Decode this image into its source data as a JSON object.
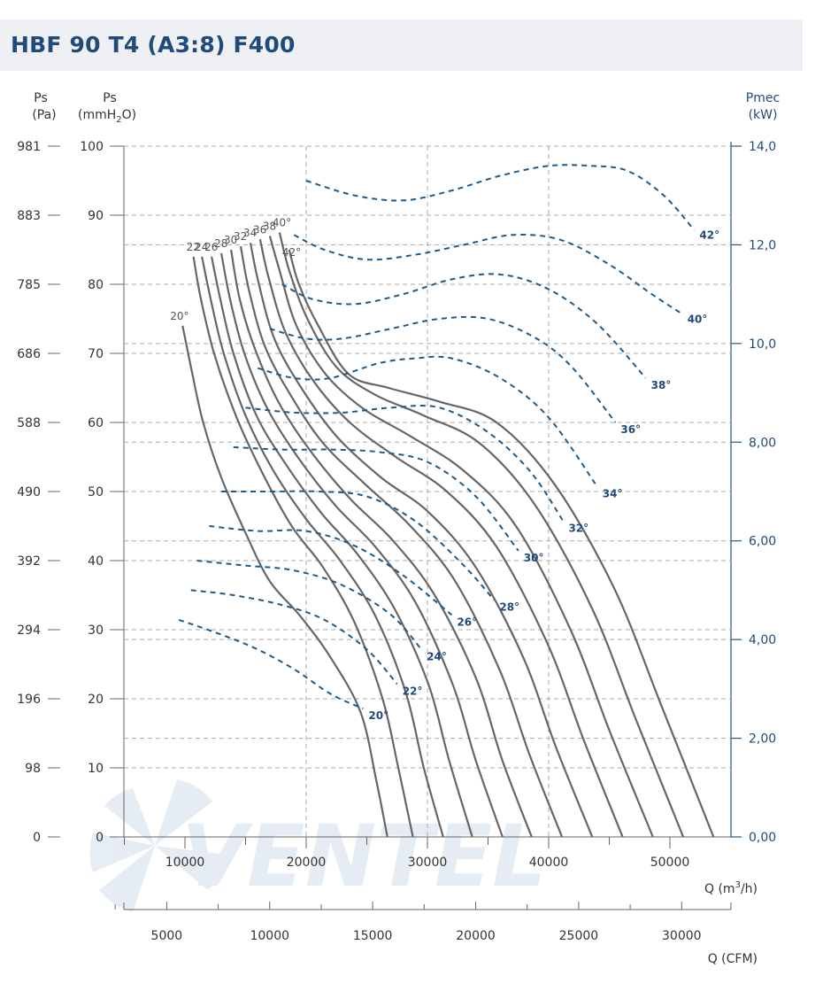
{
  "title": "HBF 90 T4 (A3:8) F400",
  "watermark": "VENTEL",
  "colors": {
    "title": "#1f4a7a",
    "curve": "#666666",
    "power": "#1f5a8a",
    "grid": "#aaaaaa"
  },
  "chart_data": {
    "type": "line",
    "title": "HBF 90 T4 (A3:8) F400",
    "grid": true,
    "axes": {
      "left_pa": {
        "label": "Ps",
        "unit": "(Pa)",
        "ticks": [
          "981",
          "883",
          "785",
          "686",
          "588",
          "490",
          "392",
          "294",
          "196",
          "98",
          "0"
        ]
      },
      "left_mmh2o": {
        "label": "Ps",
        "unit_main": "(mmH",
        "unit_sub": "2",
        "unit_end": "O)",
        "ticks": [
          "100",
          "90",
          "80",
          "70",
          "60",
          "50",
          "40",
          "30",
          "20",
          "10",
          "0"
        ],
        "ylim": [
          0,
          100
        ]
      },
      "right_kw": {
        "label": "Pmec",
        "unit": "(kW)",
        "ticks": [
          "14,0",
          "12,0",
          "10,0",
          "8,00",
          "6,00",
          "4,00",
          "2,00",
          "0,00"
        ],
        "ylim": [
          0,
          14
        ]
      },
      "x_m3h": {
        "label_main": "Q (m",
        "label_sup": "3",
        "label_end": "/h)",
        "ticks": [
          "10000",
          "20000",
          "30000",
          "40000",
          "50000"
        ],
        "xlim": [
          0,
          50000
        ]
      },
      "x_cfm": {
        "label": "Q (CFM)",
        "ticks": [
          "5000",
          "10000",
          "15000",
          "20000",
          "25000",
          "30000"
        ]
      }
    },
    "pressure_curves": [
      {
        "angle": "20°",
        "label": "20°",
        "points": [
          [
            9800,
            74
          ],
          [
            10500,
            68
          ],
          [
            11500,
            60
          ],
          [
            13000,
            52
          ],
          [
            15000,
            44
          ],
          [
            17000,
            37
          ],
          [
            19500,
            32
          ],
          [
            22000,
            26
          ],
          [
            24500,
            18
          ],
          [
            25800,
            8
          ],
          [
            26700,
            0
          ]
        ]
      },
      {
        "angle": "22°",
        "label": "22",
        "points": [
          [
            10700,
            84
          ],
          [
            11300,
            78
          ],
          [
            12400,
            70
          ],
          [
            14200,
            61
          ],
          [
            16300,
            53
          ],
          [
            18800,
            45
          ],
          [
            21400,
            39
          ],
          [
            24000,
            31
          ],
          [
            26300,
            20
          ],
          [
            27600,
            10
          ],
          [
            28800,
            0
          ]
        ]
      },
      {
        "angle": "24°",
        "label": "24",
        "points": [
          [
            11400,
            84
          ],
          [
            12100,
            78
          ],
          [
            13200,
            70
          ],
          [
            15000,
            61
          ],
          [
            17300,
            53
          ],
          [
            20000,
            46
          ],
          [
            22800,
            40
          ],
          [
            25700,
            32
          ],
          [
            28200,
            21
          ],
          [
            29700,
            10
          ],
          [
            31300,
            0
          ]
        ]
      },
      {
        "angle": "26°",
        "label": "26",
        "points": [
          [
            12200,
            84
          ],
          [
            12900,
            78
          ],
          [
            14000,
            70
          ],
          [
            15900,
            61
          ],
          [
            18300,
            54
          ],
          [
            21200,
            47
          ],
          [
            24200,
            41
          ],
          [
            27300,
            33
          ],
          [
            30100,
            22
          ],
          [
            31800,
            11
          ],
          [
            33700,
            0
          ]
        ]
      },
      {
        "angle": "28°",
        "label": "28",
        "points": [
          [
            13000,
            84.5
          ],
          [
            13700,
            78
          ],
          [
            14900,
            70
          ],
          [
            16800,
            62
          ],
          [
            19300,
            55
          ],
          [
            22400,
            48
          ],
          [
            25700,
            42
          ],
          [
            29000,
            34
          ],
          [
            32100,
            22
          ],
          [
            34000,
            11
          ],
          [
            36200,
            0
          ]
        ]
      },
      {
        "angle": "30°",
        "label": "30",
        "points": [
          [
            13800,
            85
          ],
          [
            14500,
            78
          ],
          [
            15700,
            71
          ],
          [
            17700,
            63
          ],
          [
            20300,
            56
          ],
          [
            23600,
            49
          ],
          [
            27100,
            43
          ],
          [
            30600,
            35
          ],
          [
            34000,
            23
          ],
          [
            36200,
            11
          ],
          [
            38600,
            0
          ]
        ]
      },
      {
        "angle": "32°",
        "label": "32",
        "points": [
          [
            14600,
            85.5
          ],
          [
            15300,
            79
          ],
          [
            16600,
            71
          ],
          [
            18700,
            64
          ],
          [
            21400,
            57
          ],
          [
            24900,
            51
          ],
          [
            28600,
            45
          ],
          [
            32300,
            37
          ],
          [
            36000,
            24
          ],
          [
            38400,
            12
          ],
          [
            41100,
            0
          ]
        ]
      },
      {
        "angle": "34°",
        "label": "34",
        "points": [
          [
            15400,
            86
          ],
          [
            16100,
            80
          ],
          [
            17400,
            72
          ],
          [
            19600,
            65
          ],
          [
            22500,
            58
          ],
          [
            26200,
            52
          ],
          [
            30100,
            47
          ],
          [
            34000,
            39
          ],
          [
            37900,
            26
          ],
          [
            40600,
            13
          ],
          [
            43600,
            0
          ]
        ]
      },
      {
        "angle": "36°",
        "label": "36",
        "points": [
          [
            16200,
            86.5
          ],
          [
            16900,
            81
          ],
          [
            18300,
            73
          ],
          [
            20600,
            66
          ],
          [
            23600,
            60
          ],
          [
            27400,
            55
          ],
          [
            31600,
            50
          ],
          [
            35700,
            42
          ],
          [
            39900,
            28
          ],
          [
            42900,
            14
          ],
          [
            46100,
            0
          ]
        ]
      },
      {
        "angle": "38°",
        "label": "38",
        "points": [
          [
            17000,
            87
          ],
          [
            17800,
            82
          ],
          [
            19200,
            74
          ],
          [
            21600,
            67
          ],
          [
            24700,
            62
          ],
          [
            28600,
            58
          ],
          [
            33000,
            53
          ],
          [
            37300,
            45
          ],
          [
            41800,
            30
          ],
          [
            45100,
            15
          ],
          [
            48600,
            0
          ]
        ]
      },
      {
        "angle": "40°",
        "label": "40°",
        "points": [
          [
            17800,
            87.5
          ],
          [
            18600,
            82
          ],
          [
            20100,
            75
          ],
          [
            22500,
            68
          ],
          [
            25700,
            64
          ],
          [
            29700,
            61
          ],
          [
            34300,
            57
          ],
          [
            38900,
            48
          ],
          [
            43600,
            33
          ],
          [
            47200,
            17
          ],
          [
            51100,
            0
          ]
        ]
      },
      {
        "angle": "42°",
        "label": "42°",
        "points": [
          [
            18600,
            85
          ],
          [
            19400,
            80
          ],
          [
            21000,
            74
          ],
          [
            23500,
            67
          ],
          [
            26800,
            65
          ],
          [
            31000,
            63
          ],
          [
            35700,
            60
          ],
          [
            40500,
            51
          ],
          [
            45400,
            36
          ],
          [
            49300,
            19
          ],
          [
            53600,
            0
          ]
        ]
      }
    ],
    "power_curves": [
      {
        "angle": "20°",
        "label": "20°",
        "points": [
          [
            9500,
            4.4
          ],
          [
            13000,
            4.1
          ],
          [
            16000,
            3.8
          ],
          [
            19000,
            3.4
          ],
          [
            22000,
            2.9
          ],
          [
            24700,
            2.6
          ]
        ]
      },
      {
        "angle": "22°",
        "label": "22°",
        "points": [
          [
            10500,
            5.0
          ],
          [
            14000,
            4.9
          ],
          [
            18000,
            4.7
          ],
          [
            21500,
            4.4
          ],
          [
            25000,
            3.8
          ],
          [
            27500,
            3.1
          ]
        ]
      },
      {
        "angle": "24°",
        "label": "24°",
        "points": [
          [
            11000,
            5.6
          ],
          [
            15000,
            5.5
          ],
          [
            19000,
            5.4
          ],
          [
            23000,
            5.1
          ],
          [
            27000,
            4.5
          ],
          [
            29500,
            3.8
          ]
        ]
      },
      {
        "angle": "26°",
        "label": "26°",
        "points": [
          [
            12000,
            6.3
          ],
          [
            16000,
            6.2
          ],
          [
            20000,
            6.2
          ],
          [
            24000,
            5.9
          ],
          [
            28000,
            5.3
          ],
          [
            32000,
            4.5
          ]
        ]
      },
      {
        "angle": "28°",
        "label": "28°",
        "points": [
          [
            13000,
            7.0
          ],
          [
            17000,
            7.0
          ],
          [
            21000,
            7.0
          ],
          [
            25000,
            6.9
          ],
          [
            29000,
            6.4
          ],
          [
            33000,
            5.5
          ],
          [
            35500,
            4.8
          ]
        ]
      },
      {
        "angle": "30°",
        "label": "30°",
        "points": [
          [
            14000,
            7.9
          ],
          [
            18000,
            7.85
          ],
          [
            22000,
            7.85
          ],
          [
            26000,
            7.8
          ],
          [
            30000,
            7.6
          ],
          [
            34000,
            6.9
          ],
          [
            37500,
            5.8
          ]
        ]
      },
      {
        "angle": "32°",
        "label": "32°",
        "points": [
          [
            15000,
            8.7
          ],
          [
            19000,
            8.6
          ],
          [
            23000,
            8.6
          ],
          [
            27000,
            8.7
          ],
          [
            31000,
            8.7
          ],
          [
            35000,
            8.2
          ],
          [
            38500,
            7.4
          ],
          [
            41200,
            6.4
          ]
        ]
      },
      {
        "angle": "34°",
        "label": "34°",
        "points": [
          [
            16000,
            9.5
          ],
          [
            19000,
            9.3
          ],
          [
            22000,
            9.3
          ],
          [
            26000,
            9.6
          ],
          [
            29000,
            9.7
          ],
          [
            32000,
            9.7
          ],
          [
            36000,
            9.3
          ],
          [
            40000,
            8.5
          ],
          [
            44000,
            7.1
          ]
        ]
      },
      {
        "angle": "36°",
        "label": "36°",
        "points": [
          [
            17000,
            10.3
          ],
          [
            20000,
            10.1
          ],
          [
            23000,
            10.1
          ],
          [
            27000,
            10.3
          ],
          [
            31000,
            10.5
          ],
          [
            35000,
            10.5
          ],
          [
            39000,
            10.1
          ],
          [
            42000,
            9.5
          ],
          [
            45500,
            8.4
          ]
        ]
      },
      {
        "angle": "38°",
        "label": "38°",
        "points": [
          [
            18000,
            11.2
          ],
          [
            20500,
            10.9
          ],
          [
            24000,
            10.8
          ],
          [
            28000,
            11.0
          ],
          [
            32000,
            11.3
          ],
          [
            36000,
            11.4
          ],
          [
            40000,
            11.1
          ],
          [
            44000,
            10.4
          ],
          [
            48000,
            9.3
          ]
        ]
      },
      {
        "angle": "40°",
        "label": "40°",
        "points": [
          [
            19000,
            12.2
          ],
          [
            21500,
            11.9
          ],
          [
            25000,
            11.7
          ],
          [
            29000,
            11.8
          ],
          [
            33000,
            12.0
          ],
          [
            37000,
            12.2
          ],
          [
            41000,
            12.1
          ],
          [
            45000,
            11.6
          ],
          [
            48500,
            11.0
          ],
          [
            51000,
            10.6
          ]
        ]
      },
      {
        "angle": "42°",
        "label": "42°",
        "points": [
          [
            20000,
            13.3
          ],
          [
            24000,
            13.0
          ],
          [
            28000,
            12.9
          ],
          [
            32000,
            13.1
          ],
          [
            36000,
            13.4
          ],
          [
            40000,
            13.6
          ],
          [
            43500,
            13.6
          ],
          [
            46500,
            13.5
          ],
          [
            49500,
            13.0
          ],
          [
            52000,
            12.3
          ]
        ]
      }
    ]
  }
}
